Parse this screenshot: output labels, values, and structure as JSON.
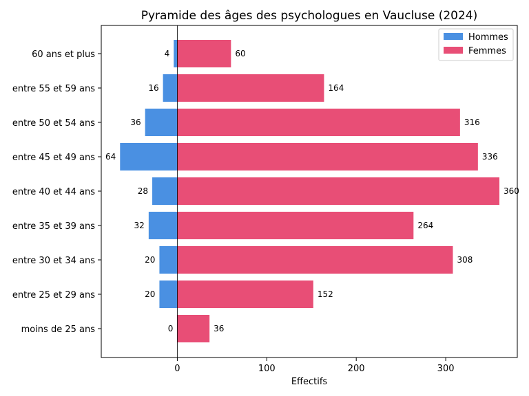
{
  "chart_data": {
    "type": "bar",
    "orientation": "horizontal",
    "title": "Pyramide des âges des psychologues en Vaucluse (2024)",
    "xlabel": "Effectifs",
    "ylabel": "",
    "xlim": [
      -85,
      380
    ],
    "xticks": [
      0,
      100,
      200,
      300
    ],
    "categories": [
      "moins de 25 ans",
      "entre 25 et 29 ans",
      "entre 30 et 34 ans",
      "entre 35 et 39 ans",
      "entre 40 et 44 ans",
      "entre 45 et 49 ans",
      "entre 50 et 54 ans",
      "entre 55 et 59 ans",
      "60 ans et plus"
    ],
    "series": [
      {
        "name": "Hommes",
        "color": "#4a90e2",
        "direction": "negative",
        "values": [
          0,
          20,
          20,
          32,
          28,
          64,
          36,
          16,
          4
        ]
      },
      {
        "name": "Femmes",
        "color": "#e84e76",
        "direction": "positive",
        "values": [
          36,
          152,
          308,
          264,
          360,
          336,
          316,
          164,
          60
        ]
      }
    ],
    "legend": "top-right",
    "grid": false
  }
}
